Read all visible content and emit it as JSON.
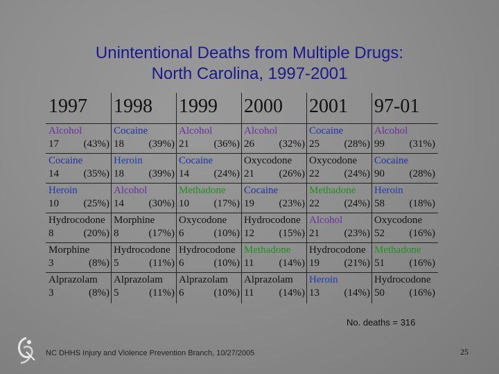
{
  "title_line1": "Unintentional Deaths from Multiple Drugs:",
  "title_line2": "North Carolina, 1997-2001",
  "years": [
    "1997",
    "1998",
    "1999",
    "2000",
    "2001",
    "97-01"
  ],
  "rows": [
    [
      [
        "Alcohol",
        "17",
        "(43%)"
      ],
      [
        "Cocaine",
        "18",
        "(39%)"
      ],
      [
        "Alcohol",
        "21",
        "(36%)"
      ],
      [
        "Alcohol",
        "26",
        "(32%)"
      ],
      [
        "Cocaine",
        "25",
        "(28%)"
      ],
      [
        "Alcohol",
        "99",
        "(31%)"
      ]
    ],
    [
      [
        "Cocaine",
        "14",
        "(35%)"
      ],
      [
        "Heroin",
        "18",
        "(39%)"
      ],
      [
        "Cocaine",
        "14",
        "(24%)"
      ],
      [
        "Oxycodone",
        "21",
        "(26%)"
      ],
      [
        "Oxycodone",
        "22",
        "(24%)"
      ],
      [
        "Cocaine",
        "90",
        "(28%)"
      ]
    ],
    [
      [
        "Heroin",
        "10",
        "(25%)"
      ],
      [
        "Alcohol",
        "14",
        "(30%)"
      ],
      [
        "Methadone",
        "10",
        "(17%)"
      ],
      [
        "Cocaine",
        "19",
        "(23%)"
      ],
      [
        "Methadone",
        "22",
        "(24%)"
      ],
      [
        "Heroin",
        "58",
        "(18%)"
      ]
    ],
    [
      [
        "Hydrocodone",
        "8",
        "(20%)"
      ],
      [
        "Morphine",
        "8",
        "(17%)"
      ],
      [
        "Oxycodone",
        "6",
        "(10%)"
      ],
      [
        "Hydrocodone",
        "12",
        "(15%)"
      ],
      [
        "Alcohol",
        "21",
        "(23%)"
      ],
      [
        "Oxycodone",
        "52",
        "(16%)"
      ]
    ],
    [
      [
        "Morphine",
        "3",
        "(8%)"
      ],
      [
        "Hydrocodone",
        "5",
        "(11%)"
      ],
      [
        "Hydrocodone",
        "6",
        "(10%)"
      ],
      [
        "Methadone",
        "11",
        "(14%)"
      ],
      [
        "Hydrocodone",
        "19",
        "(21%)"
      ],
      [
        "Methadone",
        "51",
        "(16%)"
      ]
    ],
    [
      [
        "Alprazolam",
        "3",
        "(8%)"
      ],
      [
        "Alprazolam",
        "5",
        "(11%)"
      ],
      [
        "Alprazolam",
        "6",
        "(10%)"
      ],
      [
        "Alprazolam",
        "11",
        "(14%)"
      ],
      [
        "Heroin",
        "13",
        "(14%)"
      ],
      [
        "Hydrocodone",
        "50",
        "(16%)"
      ]
    ]
  ],
  "drug_colors": {
    "Alcohol": "#6a2fa0",
    "Cocaine": "#1e2fa8",
    "Heroin": "#1d3cb0",
    "Methadone": "#1f8f1f",
    "Oxycodone": "#111111",
    "Hydrocodone": "#111111",
    "Morphine": "#111111",
    "Alprazolam": "#111111"
  },
  "footnote": "No. deaths = 316",
  "footer": "NC DHHS Injury and Violence Prevention Branch, 10/27/2005",
  "page_number": "25"
}
